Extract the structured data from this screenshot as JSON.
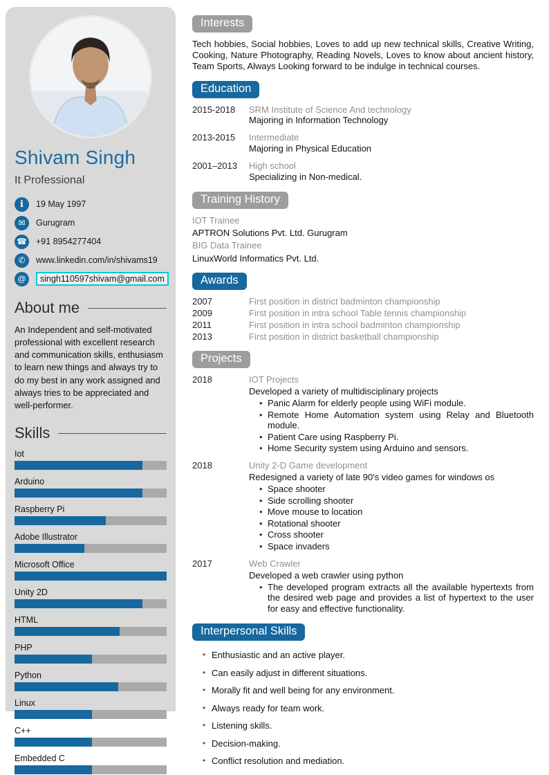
{
  "colors": {
    "accent_blue": "#16689e",
    "badge_gray": "#9d9d9d",
    "sidebar_bg": "#d9d9d9",
    "bar_track": "#aaaaaa",
    "email_box_border": "#00c8dc",
    "name_blue": "#1c6ba3"
  },
  "sidebar": {
    "name": "Shivam Singh",
    "title": "It Professional",
    "contacts": [
      {
        "icon": "info-icon",
        "text": "19 May 1997"
      },
      {
        "icon": "mail-icon",
        "text": "Gurugram"
      },
      {
        "icon": "phone-icon",
        "text": "+91 8954277404"
      },
      {
        "icon": "handset-icon",
        "text": "www.linkedin.com/in/shivams19"
      },
      {
        "icon": "at-icon",
        "text": "singh110597shivam@gmail.com"
      }
    ],
    "about": {
      "heading": "About me",
      "text": "An Independent and self-motivated professional with excellent research and communication skills, enthusiasm to learn new things and always try to do my best in any work assigned and always tries to be appreciated and well-performer."
    },
    "skills": {
      "heading": "Skills",
      "items": [
        {
          "label": "Iot",
          "percent": 84
        },
        {
          "label": "Arduino",
          "percent": 84
        },
        {
          "label": "Raspberry Pi",
          "percent": 60
        },
        {
          "label": "Adobe Illustrator",
          "percent": 46
        },
        {
          "label": "Microsoft Office",
          "percent": 100
        },
        {
          "label": "Unity 2D",
          "percent": 84
        },
        {
          "label": "HTML",
          "percent": 69
        },
        {
          "label": "PHP",
          "percent": 51
        },
        {
          "label": "Python",
          "percent": 68
        },
        {
          "label": "Linux",
          "percent": 51
        },
        {
          "label": "C++",
          "percent": 51
        },
        {
          "label": "Embedded C",
          "percent": 51
        }
      ]
    }
  },
  "main": {
    "interests": {
      "heading": "Interests",
      "text": "Tech hobbies, Social hobbies, Loves to add up new technical skills, Creative Writing, Cooking, Nature Photography, Reading Novels, Loves to know about ancient history, Team Sports, Always Looking forward to be indulge in technical courses."
    },
    "education": {
      "heading": "Education",
      "rows": [
        {
          "date": "2015-2018",
          "line1": "SRM Institute of Science And technology",
          "line2": "Majoring in Information Technology"
        },
        {
          "date": "2013-2015",
          "line1": "Intermediate",
          "line2": "Majoring in Physical Education"
        },
        {
          "date": "2001–2013",
          "line1": "High school",
          "line2": "Specializing in Non-medical."
        }
      ]
    },
    "training": {
      "heading": "Training History",
      "lines": [
        {
          "text": "IOT Trainee"
        },
        {
          "text": "APTRON Solutions Pvt. Ltd. Gurugram"
        },
        {
          "text": "BIG Data Trainee"
        },
        {
          "text": "LinuxWorld Informatics Pvt. Ltd."
        }
      ]
    },
    "awards": {
      "heading": "Awards",
      "rows": [
        {
          "year": "2007",
          "text": "First position in district badminton championship"
        },
        {
          "year": "2009",
          "text": "First position in intra school Table tennis championship"
        },
        {
          "year": "2011",
          "text": "First position in intra school badminton championship"
        },
        {
          "year": "2013",
          "text": "First position in district basketball championship"
        }
      ]
    },
    "projects": {
      "heading": "Projects",
      "entries": [
        {
          "year": "2018",
          "title": "IOT Projects",
          "description": "Developed a variety of multidisciplinary projects",
          "bullets": [
            "Panic Alarm for elderly people using WiFi module.",
            "Remote Home Automation system using Relay and Bluetooth module.",
            "Patient Care using Raspberry Pi.",
            "Home Security system using Arduino and sensors."
          ]
        },
        {
          "year": "2018",
          "title": "Unity 2-D Game development",
          "description": "Redesigned a variety of late 90's video games for windows os",
          "bullets": [
            "Space shooter",
            "Side scrolling shooter",
            "Move mouse to location",
            "Rotational shooter",
            "Cross shooter",
            "Space invaders"
          ]
        },
        {
          "year": "2017",
          "title": "Web Crawler",
          "description": "Developed a web crawler using python",
          "bullets": [
            "The developed program extracts all the available hypertexts from the desired web page and provides a list of hypertext to the user for easy and effective functionality."
          ]
        }
      ]
    },
    "interpersonal": {
      "heading": "Interpersonal Skills",
      "bullets": [
        "Enthusiastic and an active player.",
        "Can easily adjust in different situations.",
        "Morally fit and well being for any environment.",
        "Always ready for team work.",
        "Listening skills.",
        "Decision-making.",
        "Conflict resolution and mediation."
      ]
    }
  }
}
